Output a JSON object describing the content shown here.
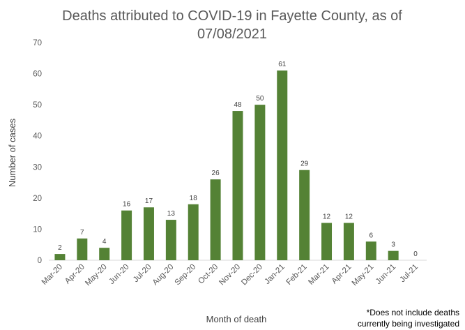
{
  "chart_data": {
    "type": "bar",
    "title_lines": [
      "Deaths attributed to COVID-19 in Fayette County, as of",
      "07/08/2021"
    ],
    "xlabel": "Month of death",
    "ylabel": "Number of cases",
    "ylim": [
      0,
      70
    ],
    "yticks": [
      0,
      10,
      20,
      30,
      40,
      50,
      60,
      70
    ],
    "grid": false,
    "bar_color": "#548235",
    "categories": [
      "Mar-20",
      "Apr-20",
      "May-20",
      "Jun-20",
      "Jul-20",
      "Aug-20",
      "Sep-20",
      "Oct-20",
      "Nov-20",
      "Dec-20",
      "Jan-21",
      "Feb-21",
      "Mar-21",
      "Apr-21",
      "May-21",
      "Jun-21",
      "Jul-21"
    ],
    "values": [
      2,
      7,
      4,
      16,
      17,
      13,
      18,
      26,
      48,
      50,
      61,
      29,
      12,
      12,
      6,
      3,
      0
    ],
    "data_labels": true
  },
  "footnote_lines": [
    "*Does not include deaths",
    "currently being investigated"
  ]
}
